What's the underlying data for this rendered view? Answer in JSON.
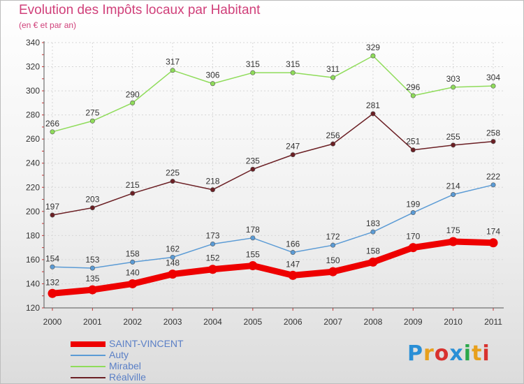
{
  "header": {
    "title": "Evolution des Impôts locaux par Habitant",
    "subtitle": "(en € et par an)"
  },
  "logo": {
    "text": "Proxiti",
    "letter_colors": [
      "#2a8fd6",
      "#e8a01d",
      "#d8322e",
      "#2a8fd6",
      "#2aa84a",
      "#e8a01d",
      "#d8322e"
    ]
  },
  "chart_data": {
    "type": "line",
    "x": [
      "2000",
      "2001",
      "2002",
      "2003",
      "2004",
      "2005",
      "2006",
      "2007",
      "2008",
      "2009",
      "2010",
      "2011"
    ],
    "ylim": [
      120,
      340
    ],
    "yticks": [
      120,
      140,
      160,
      180,
      200,
      220,
      240,
      260,
      280,
      300,
      320,
      340
    ],
    "grid": true,
    "legend_position": "bottom-left",
    "series": [
      {
        "name": "SAINT-VINCENT",
        "color": "#ee0000",
        "values": [
          132,
          135,
          140,
          148,
          152,
          155,
          147,
          150,
          158,
          170,
          175,
          174
        ]
      },
      {
        "name": "Auty",
        "color": "#5b9bd5",
        "values": [
          154,
          153,
          158,
          162,
          173,
          178,
          166,
          172,
          183,
          199,
          214,
          222
        ]
      },
      {
        "name": "Mirabel",
        "color": "#8fdc5a",
        "values": [
          266,
          275,
          290,
          317,
          306,
          315,
          315,
          311,
          329,
          296,
          303,
          304
        ]
      },
      {
        "name": "Réalville",
        "color": "#6b1f24",
        "values": [
          197,
          203,
          215,
          225,
          218,
          235,
          247,
          256,
          281,
          251,
          255,
          258
        ]
      }
    ]
  }
}
